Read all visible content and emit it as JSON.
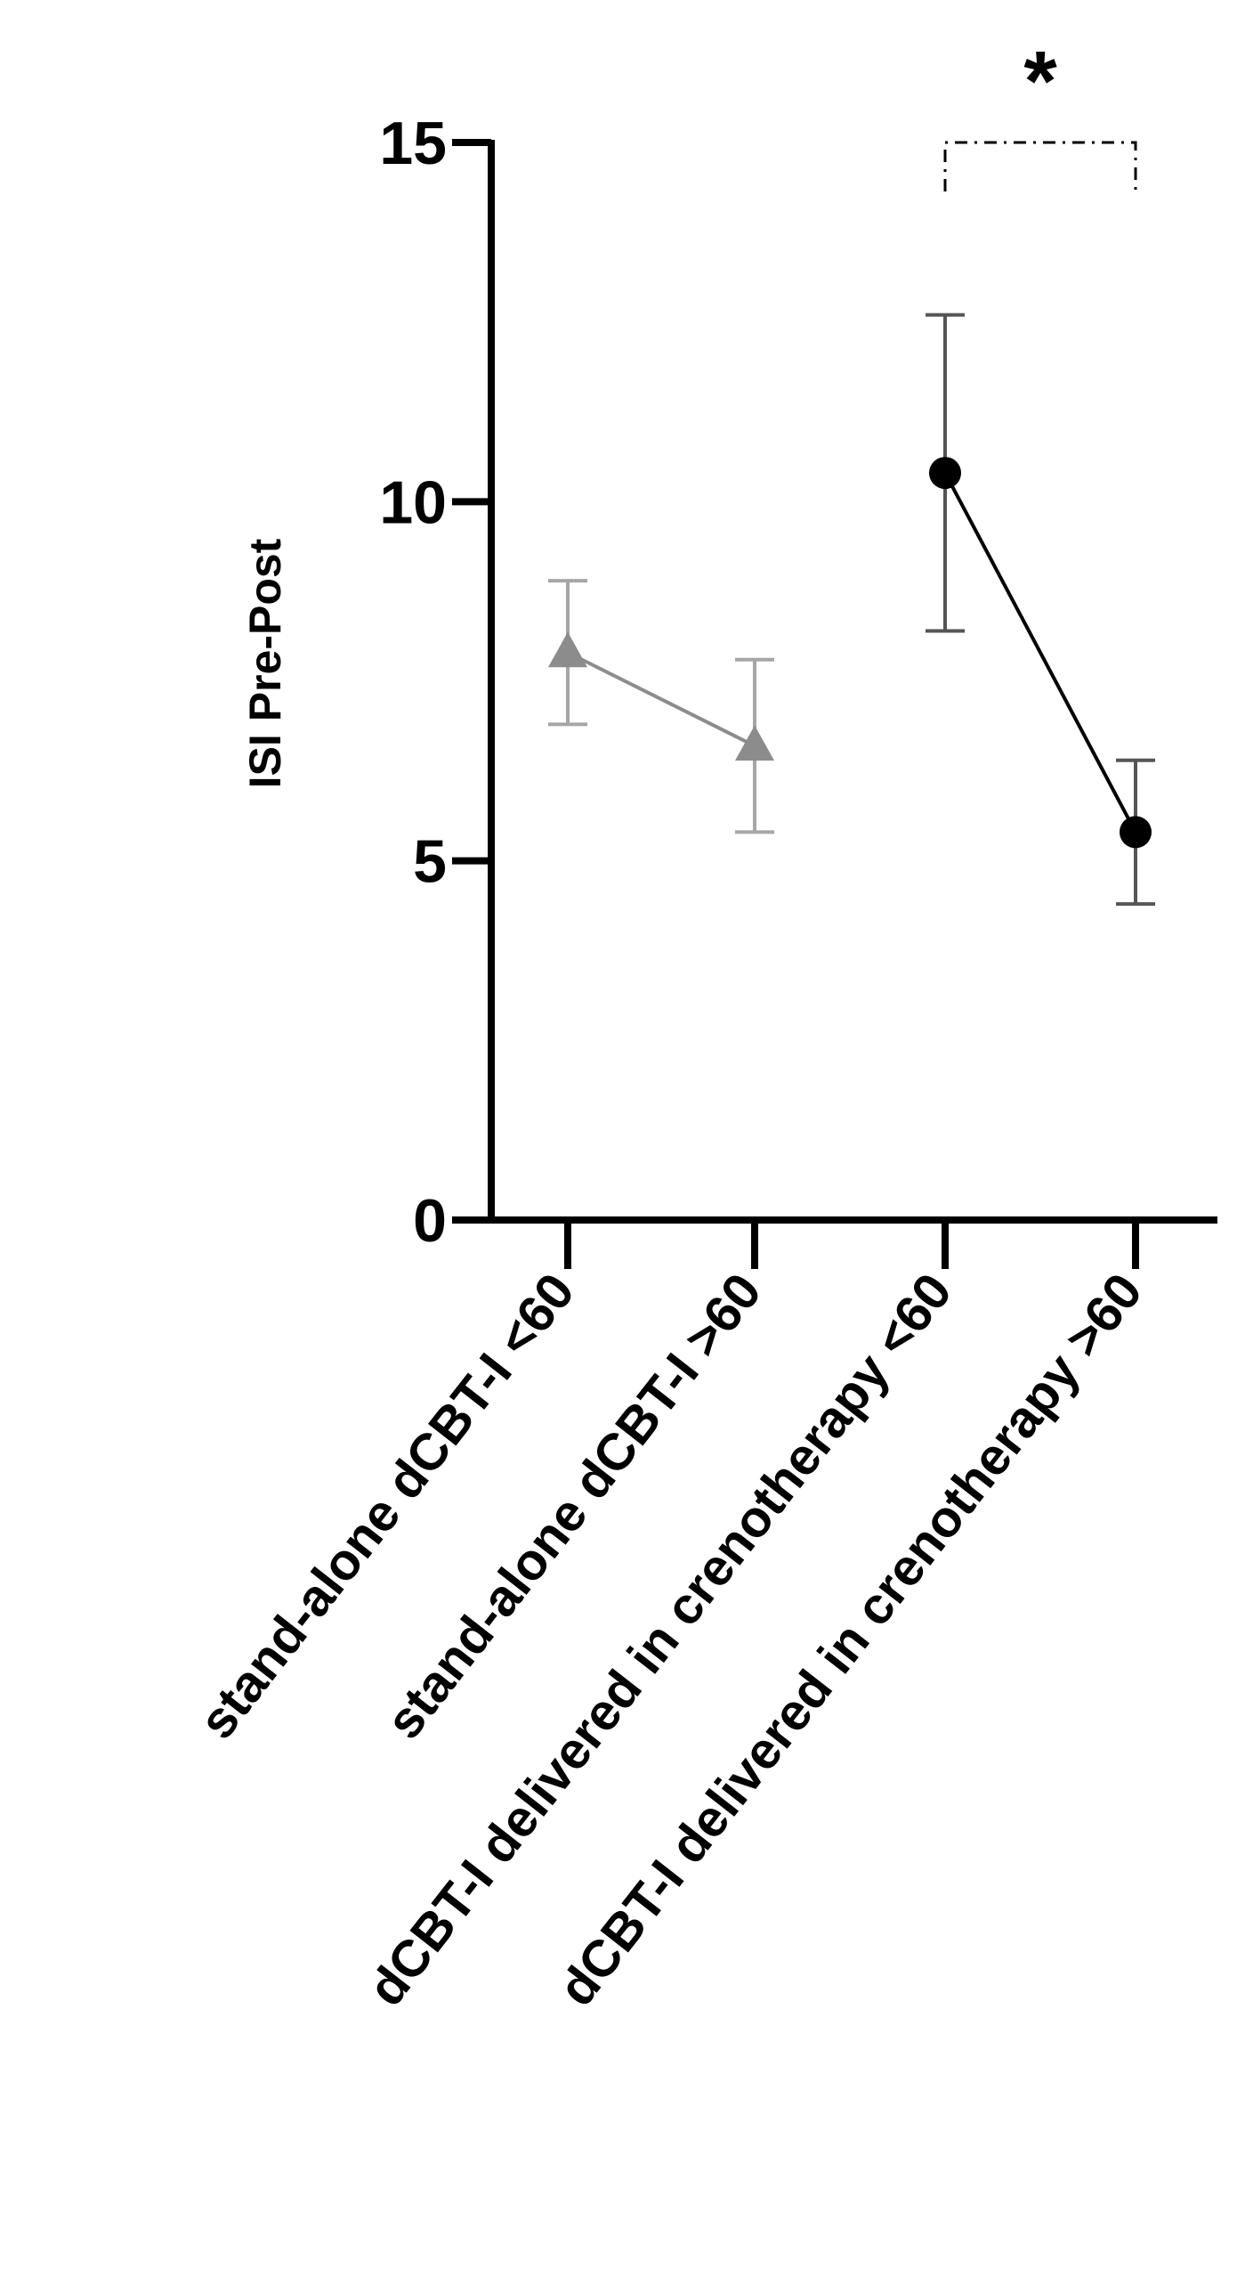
{
  "chart_data": {
    "type": "line",
    "title": "",
    "xlabel": "",
    "ylabel": "ISI Pre-Post",
    "ylim": [
      0,
      15
    ],
    "yticks": [
      0,
      5,
      10,
      15
    ],
    "ytick_labels": [
      "0",
      "5",
      "10",
      "15"
    ],
    "categories": [
      "stand-alone dCBT-I <60",
      "stand-alone dCBT-I >60",
      "dCBT-I delivered in crenotherapy <60",
      "dCBT-I delivered in crenotherapy >60"
    ],
    "grid": false,
    "legend": "none",
    "series": [
      {
        "marker": "triangle",
        "color": "#8c8c8c",
        "error_color": "#a6a6a6",
        "points": [
          {
            "category_index": 0,
            "y": 7.9,
            "err_low": 6.9,
            "err_high": 8.9
          },
          {
            "category_index": 1,
            "y": 6.6,
            "err_low": 5.4,
            "err_high": 7.8
          }
        ]
      },
      {
        "marker": "circle",
        "color": "#000000",
        "error_color": "#555555",
        "points": [
          {
            "category_index": 2,
            "y": 10.4,
            "err_low": 8.2,
            "err_high": 12.6
          },
          {
            "category_index": 3,
            "y": 5.4,
            "err_low": 4.4,
            "err_high": 6.4
          }
        ]
      }
    ],
    "annotations": [
      {
        "type": "significance-bracket",
        "from_index": 2,
        "to_index": 3,
        "y": 15,
        "text": "*"
      }
    ]
  }
}
